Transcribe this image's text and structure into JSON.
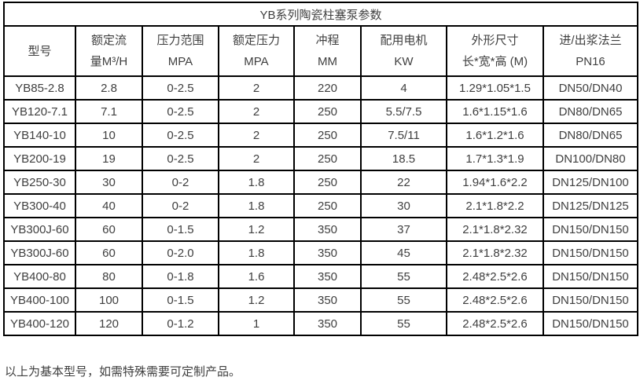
{
  "colors": {
    "border": "#000000",
    "text": "#3f3f3f",
    "background": "#ffffff"
  },
  "table": {
    "title": "YB系列陶瓷柱塞泵参数",
    "columns": [
      {
        "line1": "型号",
        "line2": ""
      },
      {
        "line1": "额定流",
        "line2": "量M³/H"
      },
      {
        "line1": "压力范围",
        "line2": "MPA"
      },
      {
        "line1": "额定压力",
        "line2": "MPA"
      },
      {
        "line1": "冲程",
        "line2": "MM"
      },
      {
        "line1": "配用电机",
        "line2": "KW"
      },
      {
        "line1": "外形尺寸",
        "line2": "长*宽*高 (M)"
      },
      {
        "line1": "进/出浆法兰",
        "line2": "PN16"
      }
    ],
    "rows": [
      [
        "YB85-2.8",
        "2.8",
        "0-2.5",
        "2",
        "220",
        "4",
        "1.29*1.05*1.5",
        "DN50/DN40"
      ],
      [
        "YB120-7.1",
        "7.1",
        "0-2.5",
        "2",
        "250",
        "5.5/7.5",
        "1.6*1.15*1.6",
        "DN80/DN65"
      ],
      [
        "YB140-10",
        "10",
        "0-2.5",
        "2",
        "250",
        "7.5/11",
        "1.6*1.2*1.6",
        "DN80/DN65"
      ],
      [
        "YB200-19",
        "19",
        "0-2.5",
        "2",
        "250",
        "18.5",
        "1.7*1.3*1.9",
        "DN100/DN80"
      ],
      [
        "YB250-30",
        "30",
        "0-2",
        "1.8",
        "250",
        "22",
        "1.94*1.6*2.2",
        "DN125/DN100"
      ],
      [
        "YB300-40",
        "40",
        "0-2",
        "1.8",
        "250",
        "30",
        "2.1*1.8*2.2",
        "DN125/DN125"
      ],
      [
        "YB300J-60",
        "60",
        "0-1.5",
        "1.2",
        "350",
        "37",
        "2.1*1.8*2.32",
        "DN150/DN150"
      ],
      [
        "YB300J-60",
        "60",
        "0-2.0",
        "1.8",
        "350",
        "45",
        "2.1*1.8*2.32",
        "DN150/DN150"
      ],
      [
        "YB400-80",
        "80",
        "0-1.8",
        "1.6",
        "350",
        "55",
        "2.48*2.5*2.6",
        "DN150/DN150"
      ],
      [
        "YB400-100",
        "100",
        "0-1.5",
        "1.2",
        "350",
        "55",
        "2.48*2.5*2.6",
        "DN150/DN150"
      ],
      [
        "YB400-120",
        "120",
        "0-1.2",
        "1",
        "350",
        "55",
        "2.48*2.5*2.6",
        "DN150/DN150"
      ]
    ],
    "footer_note": "以上为基本型号，如需特殊需要可定制产品。"
  }
}
